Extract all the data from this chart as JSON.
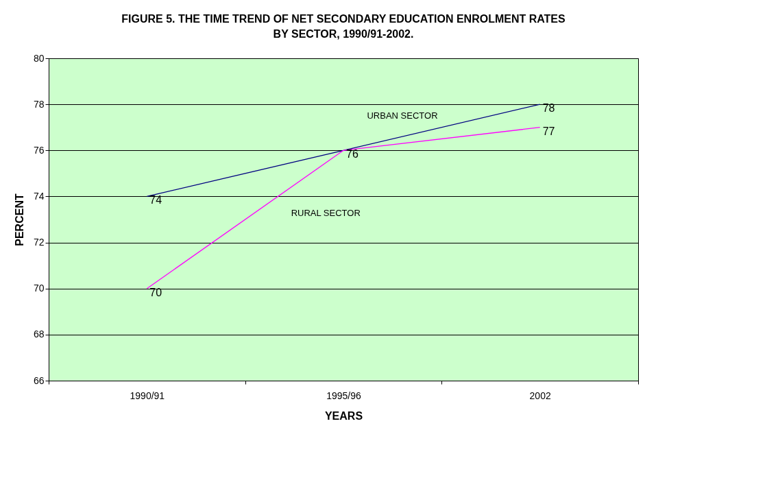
{
  "chart_data": {
    "type": "line",
    "title": "FIGURE 5. THE TIME TREND OF NET SECONDARY EDUCATION ENROLMENT RATES BY SECTOR, 1990/91-2002.",
    "xlabel": "YEARS",
    "ylabel": "PERCENT",
    "categories": [
      "1990/91",
      "1995/96",
      "2002"
    ],
    "series": [
      {
        "name": "URBAN SECTOR",
        "color": "#000080",
        "values": [
          74,
          76,
          78
        ],
        "value_labels": [
          "74",
          "76",
          "78"
        ]
      },
      {
        "name": "RURAL SECTOR",
        "color": "#ff00ff",
        "values": [
          70,
          76,
          77
        ],
        "value_labels": [
          "70",
          null,
          "77"
        ]
      }
    ],
    "ylim": [
      66,
      80
    ],
    "yticks": [
      66,
      68,
      70,
      72,
      74,
      76,
      78,
      80
    ],
    "grid": "y",
    "legend": false,
    "marker": "none",
    "line_style": "solid"
  }
}
